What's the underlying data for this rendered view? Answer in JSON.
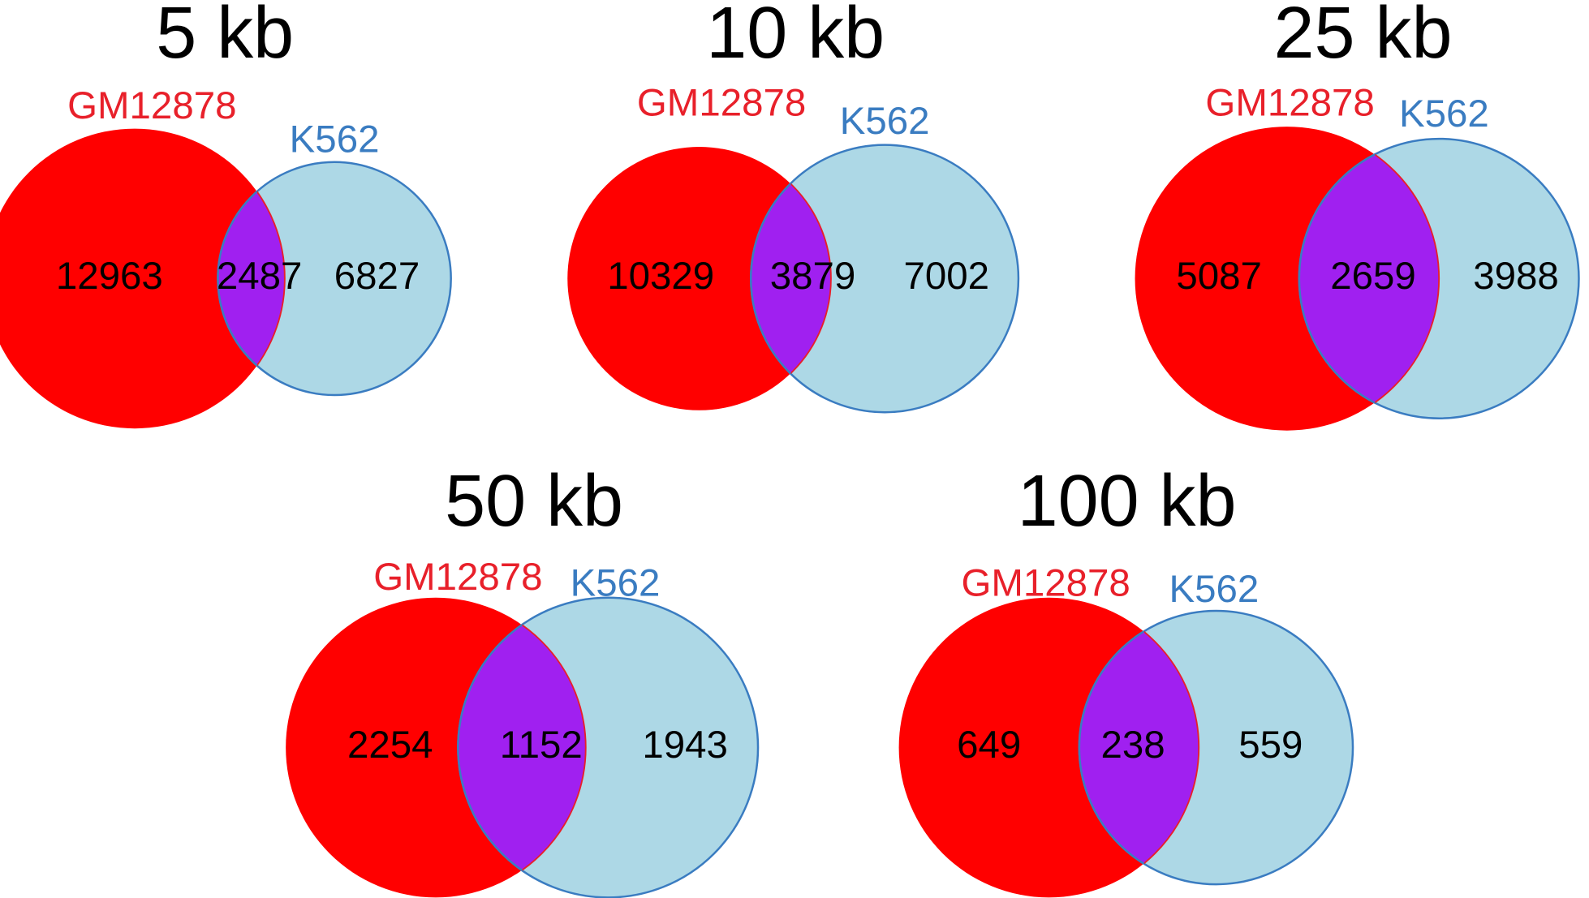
{
  "panels": [
    {
      "title": "5 kb",
      "set_a": "GM12878",
      "set_b": "K562",
      "only_a": 12963,
      "both": 2487,
      "only_b": 6827
    },
    {
      "title": "10 kb",
      "set_a": "GM12878",
      "set_b": "K562",
      "only_a": 10329,
      "both": 3879,
      "only_b": 7002
    },
    {
      "title": "25 kb",
      "set_a": "GM12878",
      "set_b": "K562",
      "only_a": 5087,
      "both": 2659,
      "only_b": 3988
    },
    {
      "title": "50 kb",
      "set_a": "GM12878",
      "set_b": "K562",
      "only_a": 2254,
      "both": 1152,
      "only_b": 1943
    },
    {
      "title": "100 kb",
      "set_a": "GM12878",
      "set_b": "K562",
      "only_a": 649,
      "both": 238,
      "only_b": 559
    }
  ]
}
